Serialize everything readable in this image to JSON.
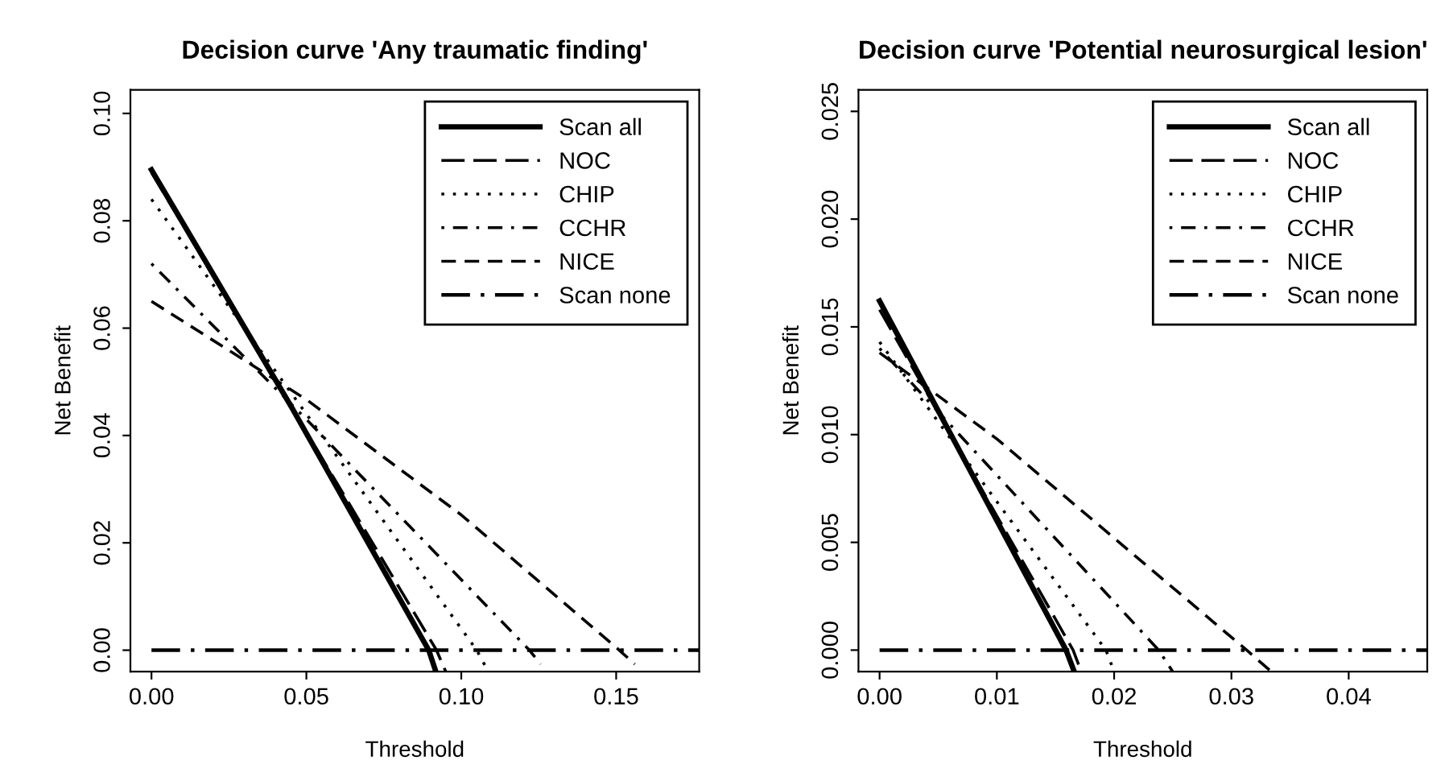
{
  "chart_data": [
    {
      "type": "line",
      "title": "Decision curve 'Any traumatic finding'",
      "xlabel": "Threshold",
      "ylabel": "Net Benefit",
      "xlim": [
        -0.0068,
        0.1768
      ],
      "ylim": [
        -0.004,
        0.1044
      ],
      "xticks": [
        {
          "value": 0,
          "label": "0.00"
        },
        {
          "value": 0.05,
          "label": "0.05"
        },
        {
          "value": 0.1,
          "label": "0.10"
        },
        {
          "value": 0.15,
          "label": "0.15"
        }
      ],
      "yticks": [
        {
          "value": 0,
          "label": "0.00"
        },
        {
          "value": 0.02,
          "label": "0.02"
        },
        {
          "value": 0.04,
          "label": "0.04"
        },
        {
          "value": 0.06,
          "label": "0.06"
        },
        {
          "value": 0.08,
          "label": "0.08"
        },
        {
          "value": 0.1,
          "label": "0.10"
        }
      ],
      "legend": "top right",
      "grid": false,
      "series": [
        {
          "name": "Scan all",
          "color": "#000000",
          "line_style": "solid",
          "x": [
            0,
            0.045,
            0.0895,
            0.0918
          ],
          "values": [
            0.0895,
            0.0455,
            0,
            -0.004
          ]
        },
        {
          "name": "NOC",
          "color": "#000000",
          "line_style": "longdashed",
          "x": [
            0,
            0.045,
            0.092,
            0.095
          ],
          "values": [
            0.089,
            0.0455,
            0,
            -0.004
          ]
        },
        {
          "name": "CHIP",
          "color": "#000000",
          "line_style": "dotted",
          "x": [
            0,
            0.05,
            0.105,
            0.1076
          ],
          "values": [
            0.084,
            0.044,
            0,
            -0.0028
          ]
        },
        {
          "name": "CCHR",
          "color": "#000000",
          "line_style": "dashdot",
          "x": [
            0,
            0.05,
            0.122,
            0.1256
          ],
          "values": [
            0.072,
            0.043,
            0,
            -0.0026
          ]
        },
        {
          "name": "NICE",
          "color": "#000000",
          "line_style": "dashed",
          "x": [
            0,
            0.05,
            0.1,
            0.151,
            0.156
          ],
          "values": [
            0.065,
            0.0467,
            0.0252,
            0,
            -0.0026
          ]
        },
        {
          "name": "Scan none",
          "color": "#000000",
          "line_style": "longdashdot",
          "x": [
            0,
            0.1768
          ],
          "values": [
            0,
            0
          ]
        }
      ]
    },
    {
      "type": "line",
      "title": "Decision curve 'Potential neurosurgical lesion'",
      "xlabel": "Threshold",
      "ylabel": "Net Benefit",
      "xlim": [
        -0.0018,
        0.0467
      ],
      "ylim": [
        -0.001,
        0.026
      ],
      "xticks": [
        {
          "value": 0,
          "label": "0.00"
        },
        {
          "value": 0.01,
          "label": "0.01"
        },
        {
          "value": 0.02,
          "label": "0.02"
        },
        {
          "value": 0.03,
          "label": "0.03"
        },
        {
          "value": 0.04,
          "label": "0.04"
        }
      ],
      "yticks": [
        {
          "value": 0,
          "label": "0.000"
        },
        {
          "value": 0.005,
          "label": "0.005"
        },
        {
          "value": 0.01,
          "label": "0.010"
        },
        {
          "value": 0.015,
          "label": "0.015"
        },
        {
          "value": 0.02,
          "label": "0.020"
        },
        {
          "value": 0.025,
          "label": "0.025"
        }
      ],
      "legend": "top right",
      "grid": false,
      "series": [
        {
          "name": "Scan all",
          "color": "#000000",
          "line_style": "solid",
          "x": [
            0,
            0.0159,
            0.0166
          ],
          "values": [
            0.0162,
            0,
            -0.001
          ]
        },
        {
          "name": "NOC",
          "color": "#000000",
          "line_style": "longdashed",
          "x": [
            0,
            0.0165,
            0.0172
          ],
          "values": [
            0.0158,
            0,
            -0.001
          ]
        },
        {
          "name": "CHIP",
          "color": "#000000",
          "line_style": "dotted",
          "x": [
            0,
            0.0193,
            0.02
          ],
          "values": [
            0.0143,
            0,
            -0.001
          ]
        },
        {
          "name": "CCHR",
          "color": "#000000",
          "line_style": "dashdot",
          "x": [
            0,
            0.0238,
            0.025
          ],
          "values": [
            0.014,
            0,
            -0.001
          ]
        },
        {
          "name": "NICE",
          "color": "#000000",
          "line_style": "dashed",
          "x": [
            0,
            0.01,
            0.0313,
            0.0334
          ],
          "values": [
            0.0138,
            0.0098,
            0,
            -0.001
          ]
        },
        {
          "name": "Scan none",
          "color": "#000000",
          "line_style": "longdashdot",
          "x": [
            0,
            0.0467
          ],
          "values": [
            0,
            0
          ]
        }
      ]
    }
  ]
}
